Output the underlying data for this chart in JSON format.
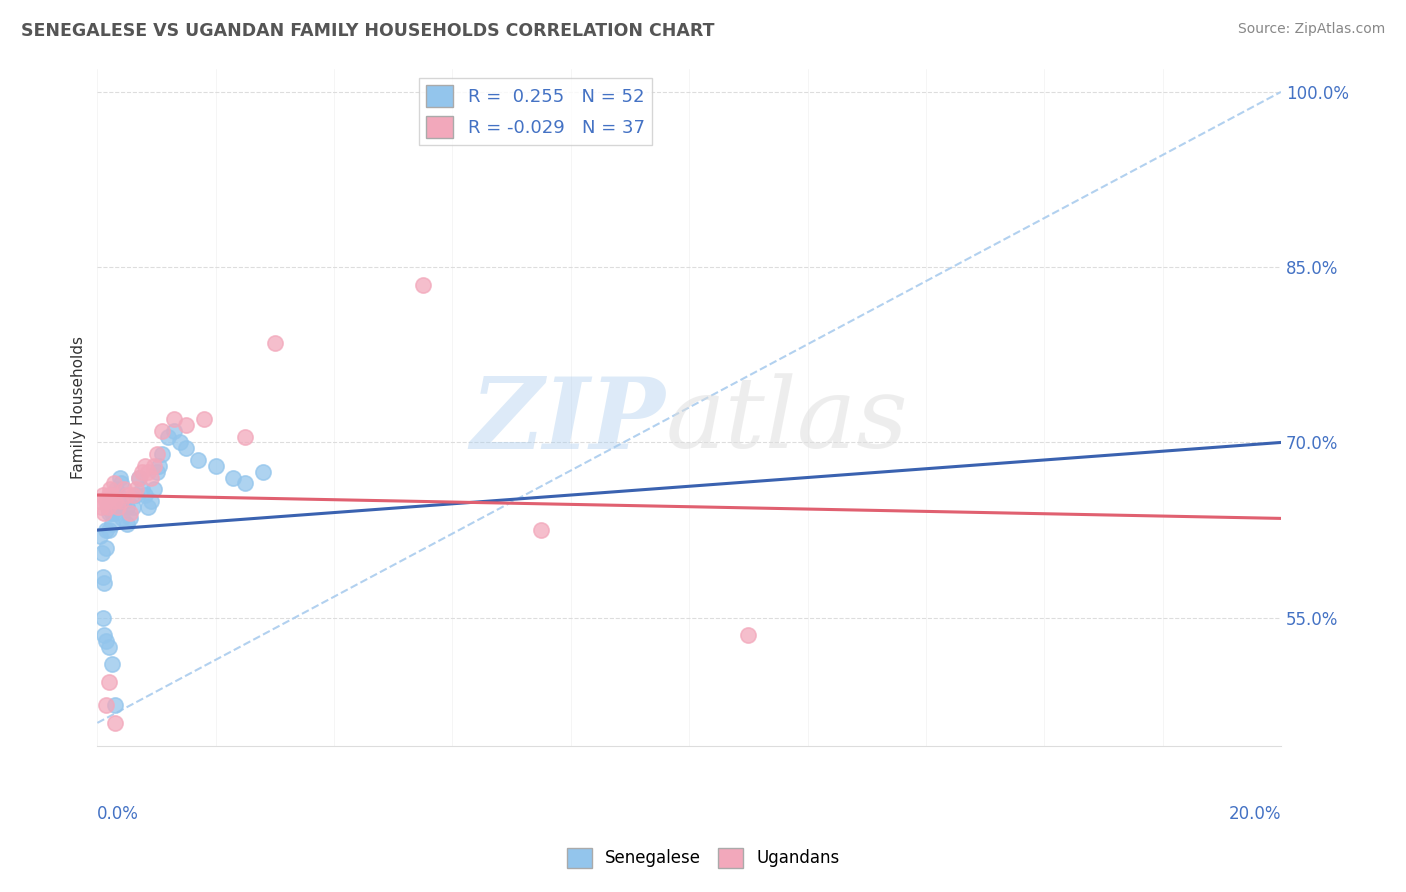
{
  "title": "SENEGALESE VS UGANDAN FAMILY HOUSEHOLDS CORRELATION CHART",
  "source": "Source: ZipAtlas.com",
  "ylabel": "Family Households",
  "xlim": [
    0.0,
    20.0
  ],
  "ylim": [
    44.0,
    102.0
  ],
  "yticks": [
    55.0,
    70.0,
    85.0,
    100.0
  ],
  "ytick_labels": [
    "55.0%",
    "70.0%",
    "85.0%",
    "100.0%"
  ],
  "senegalese_R": 0.255,
  "senegalese_N": 52,
  "ugandan_R": -0.029,
  "ugandan_N": 37,
  "blue_color": "#93C5EC",
  "pink_color": "#F2A8BB",
  "blue_line_color": "#3A62B0",
  "pink_line_color": "#E06070",
  "legend_text_color": "#4472C4",
  "grid_color": "#DDDDDD",
  "ref_line_color": "#AACCEE",
  "senegalese_x": [
    0.05,
    0.08,
    0.1,
    0.12,
    0.15,
    0.15,
    0.18,
    0.2,
    0.2,
    0.22,
    0.25,
    0.25,
    0.28,
    0.3,
    0.3,
    0.32,
    0.35,
    0.35,
    0.38,
    0.4,
    0.4,
    0.42,
    0.45,
    0.5,
    0.5,
    0.55,
    0.6,
    0.65,
    0.7,
    0.75,
    0.8,
    0.85,
    0.9,
    0.95,
    1.0,
    1.05,
    1.1,
    1.2,
    1.3,
    1.4,
    1.5,
    1.7,
    2.0,
    2.3,
    2.5,
    2.8,
    0.1,
    0.12,
    0.15,
    0.2,
    0.25,
    0.3
  ],
  "senegalese_y": [
    62.0,
    60.5,
    58.5,
    58.0,
    62.5,
    61.0,
    64.5,
    64.0,
    62.5,
    65.0,
    64.0,
    63.0,
    65.0,
    65.5,
    64.0,
    66.0,
    65.5,
    64.5,
    67.0,
    66.5,
    65.0,
    63.5,
    65.0,
    64.5,
    63.0,
    63.5,
    64.5,
    65.5,
    67.0,
    66.0,
    65.5,
    64.5,
    65.0,
    66.0,
    67.5,
    68.0,
    69.0,
    70.5,
    71.0,
    70.0,
    69.5,
    68.5,
    68.0,
    67.0,
    66.5,
    67.5,
    55.0,
    53.5,
    53.0,
    52.5,
    51.0,
    47.5
  ],
  "ugandan_x": [
    0.05,
    0.07,
    0.1,
    0.12,
    0.15,
    0.18,
    0.2,
    0.22,
    0.25,
    0.28,
    0.3,
    0.35,
    0.4,
    0.45,
    0.5,
    0.55,
    0.6,
    0.65,
    0.7,
    0.75,
    0.8,
    0.85,
    0.9,
    0.95,
    1.0,
    1.1,
    1.3,
    1.5,
    1.8,
    2.5,
    3.0,
    5.5,
    7.5,
    11.0,
    0.15,
    0.2,
    0.3
  ],
  "ugandan_y": [
    65.0,
    64.5,
    65.5,
    64.0,
    65.0,
    64.5,
    65.5,
    66.0,
    65.5,
    66.5,
    65.0,
    64.5,
    65.0,
    66.0,
    65.5,
    64.0,
    65.5,
    66.0,
    67.0,
    67.5,
    68.0,
    67.5,
    67.0,
    68.0,
    69.0,
    71.0,
    72.0,
    71.5,
    72.0,
    70.5,
    78.5,
    83.5,
    62.5,
    53.5,
    47.5,
    49.5,
    46.0
  ],
  "blue_trend_x0": 0.0,
  "blue_trend_y0": 62.5,
  "blue_trend_x1": 20.0,
  "blue_trend_y1": 70.0,
  "pink_trend_x0": 0.0,
  "pink_trend_y0": 65.5,
  "pink_trend_x1": 20.0,
  "pink_trend_y1": 63.5,
  "ref_line_x0": 0.0,
  "ref_line_y0": 46.0,
  "ref_line_x1": 20.0,
  "ref_line_y1": 100.0
}
